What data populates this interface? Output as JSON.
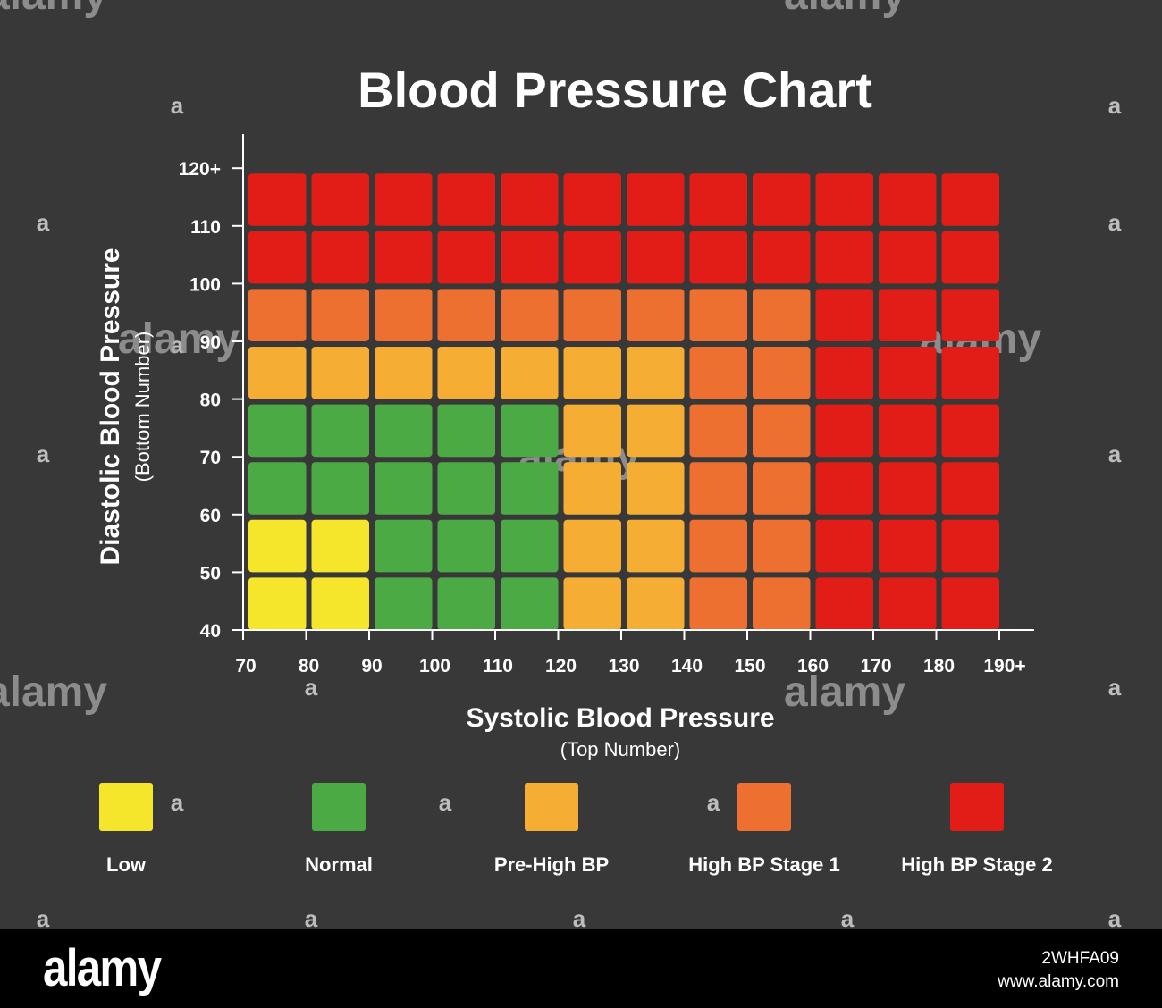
{
  "chart_data": {
    "type": "heatmap",
    "title": "Blood Pressure Chart",
    "xlabel": "Systolic Blood Pressure",
    "xlabel_sub": "(Top Number)",
    "ylabel": "Diastolic Blood Pressure",
    "ylabel_sub": "(Bottom Number)",
    "x_ticks": [
      "70",
      "80",
      "90",
      "100",
      "110",
      "120",
      "130",
      "140",
      "150",
      "160",
      "170",
      "180",
      "190+"
    ],
    "y_ticks": [
      "40",
      "50",
      "60",
      "70",
      "80",
      "90",
      "100",
      "110",
      "120+"
    ],
    "x_bins": [
      [
        70,
        80
      ],
      [
        80,
        90
      ],
      [
        90,
        100
      ],
      [
        100,
        110
      ],
      [
        110,
        120
      ],
      [
        120,
        130
      ],
      [
        130,
        140
      ],
      [
        140,
        150
      ],
      [
        150,
        160
      ],
      [
        160,
        170
      ],
      [
        170,
        180
      ],
      [
        180,
        190
      ]
    ],
    "y_bins": [
      [
        40,
        50
      ],
      [
        50,
        60
      ],
      [
        60,
        70
      ],
      [
        70,
        80
      ],
      [
        80,
        90
      ],
      [
        90,
        100
      ],
      [
        100,
        110
      ],
      [
        110,
        120
      ]
    ],
    "categories": [
      {
        "key": "low",
        "label": "Low",
        "color": "#f5e52b"
      },
      {
        "key": "normal",
        "label": "Normal",
        "color": "#4caa44"
      },
      {
        "key": "prehigh",
        "label": "Pre-High BP",
        "color": "#f5ae33"
      },
      {
        "key": "stage1",
        "label": "High BP Stage 1",
        "color": "#ed7031"
      },
      {
        "key": "stage2",
        "label": "High BP Stage 2",
        "color": "#e21c16"
      }
    ],
    "grid_rows_bottom_to_top": [
      [
        "low",
        "low",
        "normal",
        "normal",
        "normal",
        "prehigh",
        "prehigh",
        "stage1",
        "stage1",
        "stage2",
        "stage2",
        "stage2"
      ],
      [
        "low",
        "low",
        "normal",
        "normal",
        "normal",
        "prehigh",
        "prehigh",
        "stage1",
        "stage1",
        "stage2",
        "stage2",
        "stage2"
      ],
      [
        "normal",
        "normal",
        "normal",
        "normal",
        "normal",
        "prehigh",
        "prehigh",
        "stage1",
        "stage1",
        "stage2",
        "stage2",
        "stage2"
      ],
      [
        "normal",
        "normal",
        "normal",
        "normal",
        "normal",
        "prehigh",
        "prehigh",
        "stage1",
        "stage1",
        "stage2",
        "stage2",
        "stage2"
      ],
      [
        "prehigh",
        "prehigh",
        "prehigh",
        "prehigh",
        "prehigh",
        "prehigh",
        "prehigh",
        "stage1",
        "stage1",
        "stage2",
        "stage2",
        "stage2"
      ],
      [
        "stage1",
        "stage1",
        "stage1",
        "stage1",
        "stage1",
        "stage1",
        "stage1",
        "stage1",
        "stage1",
        "stage2",
        "stage2",
        "stage2"
      ],
      [
        "stage2",
        "stage2",
        "stage2",
        "stage2",
        "stage2",
        "stage2",
        "stage2",
        "stage2",
        "stage2",
        "stage2",
        "stage2",
        "stage2"
      ],
      [
        "stage2",
        "stage2",
        "stage2",
        "stage2",
        "stage2",
        "stage2",
        "stage2",
        "stage2",
        "stage2",
        "stage2",
        "stage2",
        "stage2"
      ]
    ],
    "legend_placement": "bottom",
    "grid": false
  },
  "watermark": {
    "brand": "alamy",
    "mark": "a",
    "image_id": "2WHFA09",
    "site": "www.alamy.com"
  },
  "colors": {
    "background": "#383838",
    "axis": "#ffffff",
    "footer": "#000000"
  }
}
